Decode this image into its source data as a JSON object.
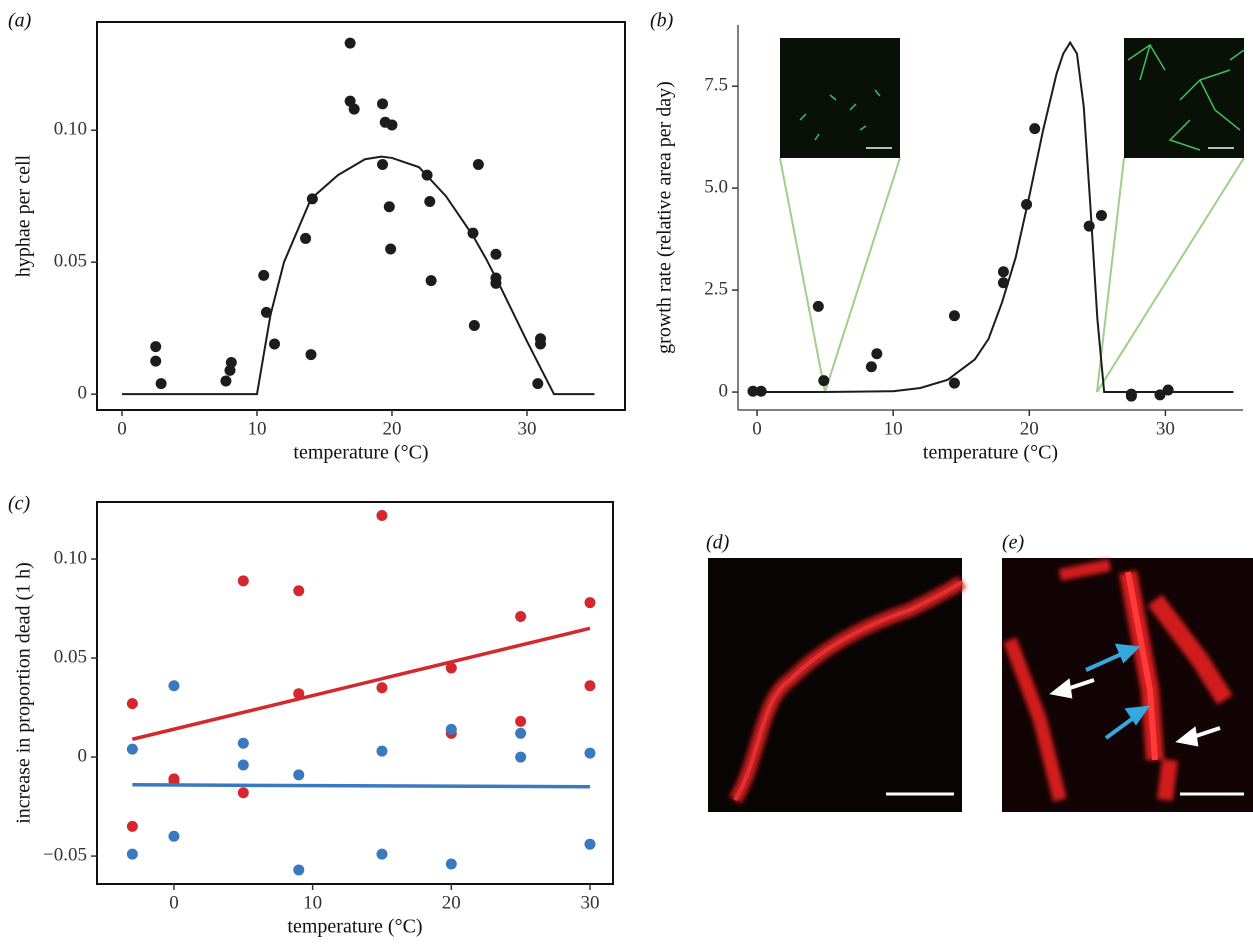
{
  "chart_data": [
    {
      "type": "scatter",
      "label": "(a)",
      "x_label": "temperature (°C)",
      "y_label": "hyphae per cell",
      "frame": "box",
      "xlim": [
        -1.85,
        37.26
      ],
      "ylim": [
        -0.006,
        0.141
      ],
      "xticks": [
        0,
        10,
        20,
        30
      ],
      "yticks": [
        0,
        0.05,
        {
          "value": 0.1,
          "label": "0.10"
        }
      ],
      "series": [
        {
          "style": "points",
          "color": "#1c1c1c",
          "x": [
            2.5,
            2.5,
            2.9,
            7.7,
            8,
            8.1,
            10.5,
            10.7,
            11.3,
            13.6,
            14.1,
            14,
            16.9,
            16.9,
            17.2,
            19.3,
            19.5,
            20,
            19.3,
            19.8,
            19.9,
            22.6,
            22.8,
            22.9,
            26,
            26.4,
            26.1,
            27.7,
            27.7,
            27.7,
            31,
            31,
            30.8
          ],
          "values": [
            0.018,
            0.0125,
            0.004,
            0.005,
            0.009,
            0.012,
            0.045,
            0.031,
            0.019,
            0.059,
            0.074,
            0.015,
            0.133,
            0.111,
            0.108,
            0.11,
            0.103,
            0.102,
            0.087,
            0.071,
            0.055,
            0.083,
            0.073,
            0.043,
            0.061,
            0.087,
            0.026,
            0.053,
            0.044,
            0.042,
            0.021,
            0.019,
            0.004
          ]
        },
        {
          "style": "line",
          "color": "#1c1c1c",
          "x": [
            0,
            10,
            11,
            12,
            14,
            16,
            18,
            19.2,
            20,
            22,
            24,
            26,
            27,
            28,
            30,
            31,
            32,
            35
          ],
          "values": [
            0,
            0,
            0.03,
            0.05,
            0.074,
            0.083,
            0.089,
            0.09,
            0.0895,
            0.086,
            0.075,
            0.06,
            0.051,
            0.041,
            0.02,
            0.01,
            0,
            0
          ]
        }
      ]
    },
    {
      "type": "scatter",
      "label": "(b)",
      "x_label": "temperature (°C)",
      "y_label": "growth rate (relative area per day)",
      "frame": "axes",
      "xlim": [
        -1.4,
        35.7
      ],
      "ylim": [
        -0.44,
        9.0
      ],
      "xticks": [
        0,
        10,
        20,
        30
      ],
      "yticks": [
        0,
        2.5,
        {
          "value": 5,
          "label": "5.0"
        },
        7.5
      ],
      "series": [
        {
          "style": "points",
          "color": "#1c1c1c",
          "x": [
            -0.3,
            0.3,
            4.5,
            4.9,
            8.4,
            8.8,
            14.5,
            14.5,
            18.1,
            18.1,
            19.8,
            20.4,
            24.4,
            25.3,
            27.5,
            27.5,
            29.6,
            30.2
          ],
          "values": [
            0.02,
            0.02,
            2.1,
            0.28,
            0.62,
            0.94,
            1.87,
            0.22,
            2.95,
            2.68,
            4.6,
            6.46,
            4.07,
            4.33,
            -0.05,
            -0.1,
            -0.07,
            0.05
          ]
        },
        {
          "style": "line",
          "color": "#1c1c1c",
          "x": [
            0,
            5,
            10,
            12,
            14,
            16,
            17,
            18,
            19,
            20,
            21,
            22,
            22.5,
            23,
            23.5,
            24,
            24.5,
            25,
            25.5,
            35
          ],
          "values": [
            0,
            0,
            0.02,
            0.1,
            0.3,
            0.8,
            1.3,
            2.2,
            3.3,
            4.8,
            6.4,
            7.8,
            8.3,
            8.57,
            8.3,
            7.0,
            4.5,
            1.8,
            0,
            0
          ]
        }
      ]
    },
    {
      "type": "scatter",
      "label": "(c)",
      "x_label": "temperature (°C)",
      "y_label": "increase in proportion dead (1 h)",
      "frame": "box",
      "xlim": [
        -5.55,
        31.66
      ],
      "ylim": [
        -0.0641,
        0.1288
      ],
      "xticks": [
        0,
        10,
        20,
        30
      ],
      "yticks": [
        {
          "value": -0.05,
          "label": "−0.05"
        },
        0,
        0.05,
        {
          "value": 0.1,
          "label": "0.10"
        }
      ],
      "series": [
        {
          "style": "points",
          "color": "#d2282e",
          "x": [
            -3,
            -3,
            0,
            0,
            5,
            5,
            9,
            9,
            15,
            15,
            20,
            20,
            25,
            25,
            30,
            30
          ],
          "values": [
            0.027,
            -0.035,
            -0.011,
            -0.012,
            0.089,
            -0.018,
            0.084,
            0.032,
            0.122,
            0.035,
            0.045,
            0.012,
            0.071,
            0.018,
            0.078,
            0.036
          ]
        },
        {
          "style": "points",
          "color": "#3a78c0",
          "x": [
            -3,
            -3,
            0,
            0,
            5,
            5,
            9,
            9,
            15,
            15,
            20,
            20,
            25,
            25,
            30,
            30
          ],
          "values": [
            0.004,
            -0.049,
            0.036,
            -0.04,
            0.007,
            -0.004,
            -0.009,
            -0.057,
            0.003,
            -0.049,
            0.014,
            -0.054,
            0.012,
            0,
            0.002,
            -0.044
          ]
        },
        {
          "style": "line",
          "color": "#d2282e",
          "x": [
            -3,
            30
          ],
          "values": [
            0.009,
            0.065
          ]
        },
        {
          "style": "line",
          "color": "#3a78c0",
          "x": [
            -3,
            30
          ],
          "values": [
            -0.014,
            -0.015
          ]
        }
      ]
    }
  ],
  "images": [
    {
      "label": "(d)"
    },
    {
      "label": "(e)"
    }
  ]
}
